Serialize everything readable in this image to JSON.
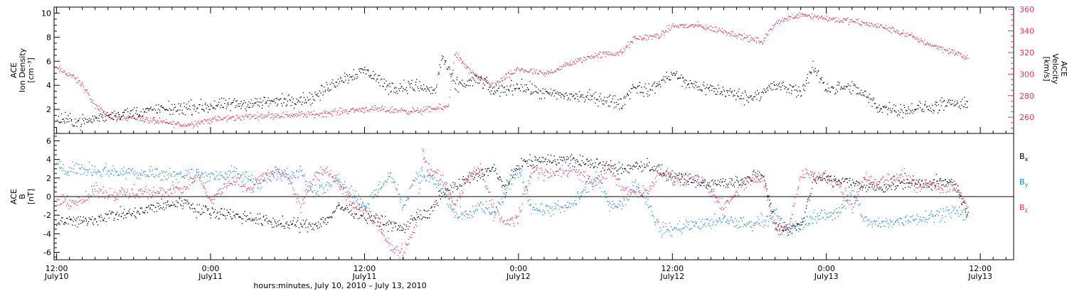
{
  "chart_data": [
    {
      "type": "scatter",
      "panel": "top",
      "y_title_lines": [
        "ACE",
        "Ion Density",
        "[cm⁻³]"
      ],
      "y2_title_lines": [
        "ACE",
        "Velocity",
        "[km/s]"
      ],
      "ylim": [
        0,
        10.5
      ],
      "yticks": [
        2,
        4,
        6,
        8,
        10
      ],
      "y2lim": [
        245,
        362
      ],
      "y2ticks": [
        260,
        280,
        300,
        320,
        340,
        360
      ],
      "series": [
        {
          "key": "density",
          "color": "#000000",
          "axis": "left",
          "anchors": [
            [
              0,
              1.2
            ],
            [
              2,
              1.0
            ],
            [
              4,
              1.5
            ],
            [
              8,
              2.0
            ],
            [
              12,
              2.3
            ],
            [
              16,
              2.6
            ],
            [
              20,
              3.0
            ],
            [
              22,
              4.5
            ],
            [
              24,
              5.3
            ],
            [
              26,
              3.8
            ],
            [
              28,
              4.0
            ],
            [
              29.5,
              3.5
            ],
            [
              30,
              6.5
            ],
            [
              31,
              4.0
            ],
            [
              33,
              4.5
            ],
            [
              34,
              3.5
            ],
            [
              36,
              4.0
            ],
            [
              38,
              3.3
            ],
            [
              42,
              3.0
            ],
            [
              44,
              2.5
            ],
            [
              45,
              4.0
            ],
            [
              46,
              3.5
            ],
            [
              48,
              5.0
            ],
            [
              49,
              4.2
            ],
            [
              52,
              3.5
            ],
            [
              54,
              3.0
            ],
            [
              56,
              4.0
            ],
            [
              58,
              3.5
            ],
            [
              59,
              5.5
            ],
            [
              60,
              3.8
            ],
            [
              62,
              3.8
            ],
            [
              63,
              3.2
            ],
            [
              64,
              2.2
            ],
            [
              66,
              2.0
            ],
            [
              68,
              2.2
            ],
            [
              70,
              2.5
            ],
            [
              71,
              2.3
            ]
          ],
          "noise": 0.45
        },
        {
          "key": "velocity",
          "color": "#e8325f",
          "axis": "right",
          "anchors": [
            [
              0,
              305
            ],
            [
              1,
              300
            ],
            [
              2,
              290
            ],
            [
              3,
              270
            ],
            [
              4,
              262
            ],
            [
              6,
              260
            ],
            [
              8,
              256
            ],
            [
              10,
              253
            ],
            [
              12,
              258
            ],
            [
              16,
              262
            ],
            [
              20,
              263
            ],
            [
              24,
              268
            ],
            [
              28,
              266
            ],
            [
              30.5,
              270
            ],
            [
              31,
              320
            ],
            [
              32,
              305
            ],
            [
              33,
              295
            ],
            [
              34,
              290
            ],
            [
              36,
              305
            ],
            [
              38,
              300
            ],
            [
              40,
              310
            ],
            [
              42,
              318
            ],
            [
              44,
              320
            ],
            [
              45,
              333
            ],
            [
              47,
              336
            ],
            [
              48,
              345
            ],
            [
              50,
              345
            ],
            [
              52,
              340
            ],
            [
              54,
              333
            ],
            [
              55,
              330
            ],
            [
              56,
              348
            ],
            [
              58,
              356
            ],
            [
              60,
              352
            ],
            [
              62,
              349
            ],
            [
              64,
              345
            ],
            [
              66,
              338
            ],
            [
              68,
              328
            ],
            [
              70,
              320
            ],
            [
              71,
              315
            ]
          ],
          "noise": 2.5
        }
      ]
    },
    {
      "type": "scatter",
      "panel": "bottom",
      "y_title_lines": [
        "ACE",
        "B",
        "[nT]"
      ],
      "ylim": [
        -6.8,
        6.8
      ],
      "yticks": [
        -6,
        -4,
        -2,
        0,
        2,
        4,
        6
      ],
      "series": [
        {
          "key": "bx",
          "name": "Bx",
          "color": "#000000",
          "anchors": [
            [
              0,
              -2.5
            ],
            [
              2,
              -2.7
            ],
            [
              4,
              -2.0
            ],
            [
              6,
              -1.8
            ],
            [
              8,
              -1.0
            ],
            [
              10,
              -0.5
            ],
            [
              11,
              -1.5
            ],
            [
              12,
              -1.5
            ],
            [
              14,
              -2.0
            ],
            [
              16,
              -2.5
            ],
            [
              18,
              -3.0
            ],
            [
              20,
              -3.0
            ],
            [
              21,
              -2.5
            ],
            [
              22,
              -1.0
            ],
            [
              24,
              -2.0
            ],
            [
              26,
              -3.0
            ],
            [
              27,
              -3.5
            ],
            [
              28,
              -2.0
            ],
            [
              29,
              -2.0
            ],
            [
              30,
              0.5
            ],
            [
              31,
              1.0
            ],
            [
              32,
              2.0
            ],
            [
              34,
              3.0
            ],
            [
              35,
              1.0
            ],
            [
              36,
              3.5
            ],
            [
              38,
              4.0
            ],
            [
              40,
              4.0
            ],
            [
              42,
              3.5
            ],
            [
              44,
              3.0
            ],
            [
              46,
              3.5
            ],
            [
              48,
              2.0
            ],
            [
              50,
              1.5
            ],
            [
              52,
              1.5
            ],
            [
              54,
              2.0
            ],
            [
              55,
              2.5
            ],
            [
              56,
              -3.0
            ],
            [
              57,
              -3.5
            ],
            [
              58,
              -3.0
            ],
            [
              59,
              2.0
            ],
            [
              60,
              2.0
            ],
            [
              62,
              1.5
            ],
            [
              64,
              1.0
            ],
            [
              66,
              1.5
            ],
            [
              68,
              1.5
            ],
            [
              70,
              1.5
            ],
            [
              71,
              -2.0
            ]
          ],
          "noise": 0.55
        },
        {
          "key": "by",
          "name": "By",
          "color": "#1f88e0",
          "anchors": [
            [
              0,
              3.2
            ],
            [
              4,
              2.8
            ],
            [
              8,
              2.5
            ],
            [
              12,
              2.3
            ],
            [
              14,
              2.5
            ],
            [
              16,
              1.5
            ],
            [
              17,
              2.5
            ],
            [
              18,
              2.0
            ],
            [
              19,
              3.0
            ],
            [
              20,
              0.5
            ],
            [
              22,
              2.0
            ],
            [
              24,
              -1.0
            ],
            [
              26,
              2.5
            ],
            [
              27,
              -1.0
            ],
            [
              28,
              2.5
            ],
            [
              29,
              2.0
            ],
            [
              30,
              1.0
            ],
            [
              31,
              -2.0
            ],
            [
              32,
              -2.0
            ],
            [
              33,
              -1.0
            ],
            [
              34,
              -2.0
            ],
            [
              36,
              3.0
            ],
            [
              37,
              -1.0
            ],
            [
              38,
              -1.5
            ],
            [
              40,
              -1.0
            ],
            [
              42,
              2.0
            ],
            [
              43,
              -0.5
            ],
            [
              44,
              -1.0
            ],
            [
              45,
              1.5
            ],
            [
              46,
              -0.5
            ],
            [
              47,
              -3.5
            ],
            [
              48,
              -3.5
            ],
            [
              49,
              -3.0
            ],
            [
              50,
              -3.0
            ],
            [
              52,
              -2.5
            ],
            [
              54,
              -3.0
            ],
            [
              56,
              -2.0
            ],
            [
              57,
              -3.5
            ],
            [
              58,
              -3.0
            ],
            [
              59,
              -2.0
            ],
            [
              60,
              -2.0
            ],
            [
              61,
              -1.5
            ],
            [
              62,
              0.5
            ],
            [
              63,
              -2.5
            ],
            [
              64,
              -3.0
            ],
            [
              66,
              -2.5
            ],
            [
              68,
              -2.0
            ],
            [
              70,
              -1.5
            ],
            [
              71,
              -2.0
            ]
          ],
          "noise": 0.6
        },
        {
          "key": "bz",
          "name": "Bz",
          "color": "#e8325f",
          "anchors": [
            [
              0,
              -0.5
            ],
            [
              2,
              -0.5
            ],
            [
              3,
              0.8
            ],
            [
              4,
              0.3
            ],
            [
              6,
              0.5
            ],
            [
              8,
              0.5
            ],
            [
              10,
              1.0
            ],
            [
              11,
              2.5
            ],
            [
              12,
              -0.5
            ],
            [
              13,
              1.0
            ],
            [
              14,
              2.0
            ],
            [
              15,
              0.5
            ],
            [
              16,
              2.5
            ],
            [
              18,
              2.5
            ],
            [
              19,
              -1.0
            ],
            [
              20,
              2.0
            ],
            [
              21,
              3.0
            ],
            [
              22,
              1.5
            ],
            [
              23,
              -1.0
            ],
            [
              24,
              -1.0
            ],
            [
              25,
              -3.0
            ],
            [
              26,
              -5.5
            ],
            [
              27,
              -6.0
            ],
            [
              28,
              -3.0
            ],
            [
              28.5,
              4.5
            ],
            [
              29,
              3.0
            ],
            [
              30,
              2.0
            ],
            [
              31,
              -1.0
            ],
            [
              32,
              2.0
            ],
            [
              33,
              3.0
            ],
            [
              34,
              -1.0
            ],
            [
              35,
              -3.0
            ],
            [
              36,
              -2.0
            ],
            [
              37,
              3.0
            ],
            [
              38,
              2.5
            ],
            [
              40,
              3.0
            ],
            [
              42,
              1.5
            ],
            [
              43,
              3.0
            ],
            [
              44,
              1.0
            ],
            [
              45,
              0.5
            ],
            [
              46,
              0.5
            ],
            [
              47,
              3.0
            ],
            [
              48,
              2.0
            ],
            [
              50,
              2.0
            ],
            [
              52,
              -1.0
            ],
            [
              53,
              0.5
            ],
            [
              54,
              2.0
            ],
            [
              55,
              2.0
            ],
            [
              56,
              -3.5
            ],
            [
              57,
              -3.5
            ],
            [
              58,
              2.5
            ],
            [
              59,
              2.5
            ],
            [
              60,
              2.0
            ],
            [
              61,
              1.0
            ],
            [
              62,
              -1.0
            ],
            [
              63,
              2.0
            ],
            [
              64,
              1.5
            ],
            [
              65,
              2.0
            ],
            [
              66,
              2.5
            ],
            [
              67,
              1.0
            ],
            [
              68,
              1.5
            ],
            [
              69,
              1.0
            ],
            [
              70,
              1.0
            ],
            [
              71,
              -1.0
            ]
          ],
          "noise": 0.55
        }
      ]
    }
  ],
  "xaxis": {
    "title": "hours:minutes, July 10, 2010 – July 13, 2010",
    "xlim": [
      -0.2,
      74.6
    ],
    "ticks": [
      {
        "x": 0,
        "line1": "12:00",
        "line2": "July10"
      },
      {
        "x": 12,
        "line1": "0:00",
        "line2": "July11"
      },
      {
        "x": 24,
        "line1": "12:00",
        "line2": "July11"
      },
      {
        "x": 36,
        "line1": "0:00",
        "line2": "July12"
      },
      {
        "x": 48,
        "line1": "12:00",
        "line2": "July12"
      },
      {
        "x": 60,
        "line1": "0:00",
        "line2": "July13"
      },
      {
        "x": 72,
        "line1": "12:00",
        "line2": "July13"
      }
    ],
    "minor_step": 1
  },
  "legend": [
    {
      "base": "B",
      "sub": "x",
      "color": "#000000"
    },
    {
      "base": "B",
      "sub": "y",
      "color": "#1f88e0"
    },
    {
      "base": "B",
      "sub": "z",
      "color": "#e8325f"
    }
  ]
}
